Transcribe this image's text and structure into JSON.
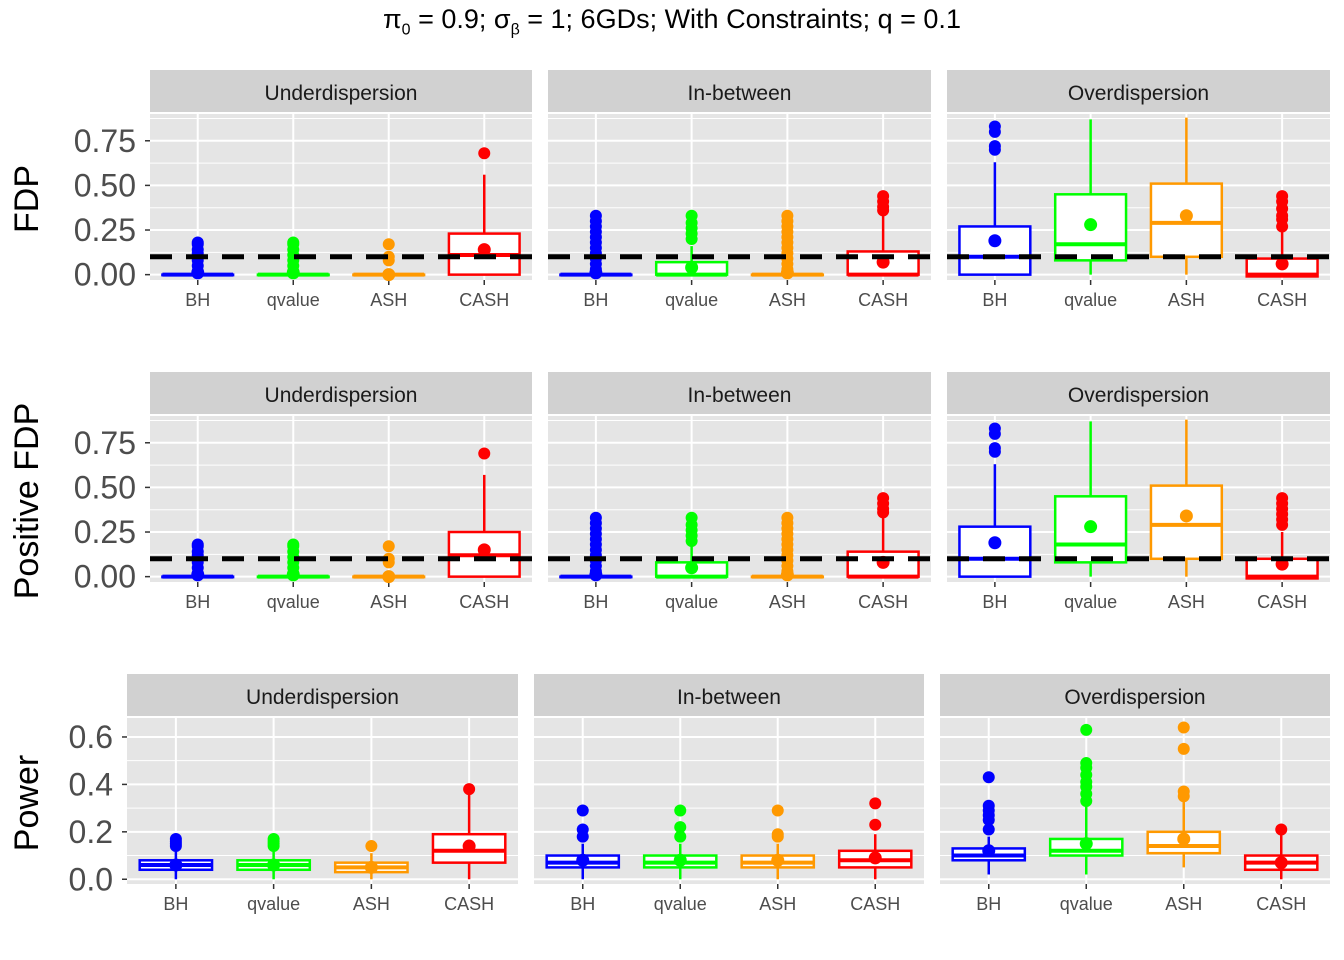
{
  "title": "π₀ = 0.9; σ_β = 1; 6GDs; With Constraints; q = 0.1",
  "title_parts": {
    "pi": "π",
    "pi_sub": "0",
    "pi_val": " = 0.9; ",
    "sigma": "σ",
    "sigma_sub": "β",
    "rest": " = 1; 6GDs; With Constraints; q = 0.1"
  },
  "colors": {
    "BH": "#0000ff",
    "qvalue": "#00ff00",
    "ASH": "#ff9900",
    "CASH": "#ff0000",
    "panel_bg": "#e5e5e5",
    "strip_bg": "#d1d1d1",
    "grid": "#ffffff",
    "threshold": "#000000"
  },
  "chart_data": [
    {
      "type": "box",
      "ylabel": "FDP",
      "ylim": [
        -0.03,
        0.9
      ],
      "yticks": [
        0.0,
        0.25,
        0.5,
        0.75
      ],
      "ytick_labels": [
        "0.00",
        "0.25",
        "0.50",
        "0.75"
      ],
      "threshold": 0.1,
      "categories": [
        "BH",
        "qvalue",
        "ASH",
        "CASH"
      ],
      "facets": [
        {
          "label": "Underdispersion",
          "boxes": [
            {
              "method": "BH",
              "q1": 0,
              "median": 0,
              "q3": 0,
              "whisker_low": 0,
              "whisker_high": 0,
              "mean": 0.01,
              "outliers": [
                0.02,
                0.05,
                0.08,
                0.1,
                0.12,
                0.14,
                0.17,
                0.18
              ]
            },
            {
              "method": "qvalue",
              "q1": 0,
              "median": 0,
              "q3": 0,
              "whisker_low": 0,
              "whisker_high": 0,
              "mean": 0.01,
              "outliers": [
                0.02,
                0.05,
                0.08,
                0.11,
                0.14,
                0.17,
                0.18
              ]
            },
            {
              "method": "ASH",
              "q1": 0,
              "median": 0,
              "q3": 0,
              "whisker_low": 0,
              "whisker_high": 0,
              "mean": 0.0,
              "outliers": [
                0.08,
                0.1,
                0.17
              ]
            },
            {
              "method": "CASH",
              "q1": 0,
              "median": 0.11,
              "q3": 0.23,
              "whisker_low": 0,
              "whisker_high": 0.56,
              "mean": 0.14,
              "outliers": [
                0.68
              ]
            }
          ]
        },
        {
          "label": "In-between",
          "boxes": [
            {
              "method": "BH",
              "q1": 0,
              "median": 0,
              "q3": 0,
              "whisker_low": 0,
              "whisker_high": 0,
              "mean": 0.01,
              "outliers": [
                0.03,
                0.06,
                0.09,
                0.12,
                0.15,
                0.18,
                0.21,
                0.24,
                0.27,
                0.3,
                0.33
              ]
            },
            {
              "method": "qvalue",
              "q1": 0,
              "median": 0,
              "q3": 0.07,
              "whisker_low": 0,
              "whisker_high": 0.16,
              "mean": 0.04,
              "outliers": [
                0.2,
                0.23,
                0.26,
                0.29,
                0.33
              ]
            },
            {
              "method": "ASH",
              "q1": 0,
              "median": 0,
              "q3": 0,
              "whisker_low": 0,
              "whisker_high": 0,
              "mean": 0.01,
              "outliers": [
                0.03,
                0.06,
                0.09,
                0.12,
                0.15,
                0.18,
                0.21,
                0.24,
                0.27,
                0.3,
                0.33
              ]
            },
            {
              "method": "CASH",
              "q1": 0,
              "median": 0,
              "q3": 0.13,
              "whisker_low": 0,
              "whisker_high": 0.33,
              "mean": 0.07,
              "outliers": [
                0.36,
                0.38,
                0.41,
                0.44
              ]
            }
          ]
        },
        {
          "label": "Overdispersion",
          "boxes": [
            {
              "method": "BH",
              "q1": 0,
              "median": 0.1,
              "q3": 0.27,
              "whisker_low": 0,
              "whisker_high": 0.63,
              "mean": 0.19,
              "outliers": [
                0.7,
                0.72,
                0.8,
                0.83
              ]
            },
            {
              "method": "qvalue",
              "q1": 0.08,
              "median": 0.17,
              "q3": 0.45,
              "whisker_low": 0,
              "whisker_high": 0.87,
              "mean": 0.28,
              "outliers": []
            },
            {
              "method": "ASH",
              "q1": 0.1,
              "median": 0.29,
              "q3": 0.51,
              "whisker_low": 0,
              "whisker_high": 0.88,
              "mean": 0.33,
              "outliers": []
            },
            {
              "method": "CASH",
              "q1": -0.01,
              "median": 0,
              "q3": 0.09,
              "whisker_low": 0,
              "whisker_high": 0.24,
              "mean": 0.06,
              "outliers": [
                0.27,
                0.31,
                0.33,
                0.37,
                0.41,
                0.44
              ]
            }
          ]
        }
      ]
    },
    {
      "type": "box",
      "ylabel": "Positive FDP",
      "ylim": [
        -0.03,
        0.9
      ],
      "yticks": [
        0.0,
        0.25,
        0.5,
        0.75
      ],
      "ytick_labels": [
        "0.00",
        "0.25",
        "0.50",
        "0.75"
      ],
      "threshold": 0.1,
      "categories": [
        "BH",
        "qvalue",
        "ASH",
        "CASH"
      ],
      "facets": [
        {
          "label": "Underdispersion",
          "boxes": [
            {
              "method": "BH",
              "q1": 0,
              "median": 0,
              "q3": 0,
              "whisker_low": 0,
              "whisker_high": 0,
              "mean": 0.01,
              "outliers": [
                0.02,
                0.05,
                0.08,
                0.1,
                0.12,
                0.14,
                0.17,
                0.18
              ]
            },
            {
              "method": "qvalue",
              "q1": 0,
              "median": 0,
              "q3": 0,
              "whisker_low": 0,
              "whisker_high": 0,
              "mean": 0.01,
              "outliers": [
                0.02,
                0.05,
                0.08,
                0.11,
                0.14,
                0.17,
                0.18
              ]
            },
            {
              "method": "ASH",
              "q1": 0,
              "median": 0,
              "q3": 0,
              "whisker_low": 0,
              "whisker_high": 0,
              "mean": 0.0,
              "outliers": [
                0.08,
                0.1,
                0.17
              ]
            },
            {
              "method": "CASH",
              "q1": 0,
              "median": 0.12,
              "q3": 0.25,
              "whisker_low": 0,
              "whisker_high": 0.57,
              "mean": 0.15,
              "outliers": [
                0.69
              ]
            }
          ]
        },
        {
          "label": "In-between",
          "boxes": [
            {
              "method": "BH",
              "q1": 0,
              "median": 0,
              "q3": 0,
              "whisker_low": 0,
              "whisker_high": 0,
              "mean": 0.01,
              "outliers": [
                0.03,
                0.06,
                0.09,
                0.12,
                0.15,
                0.18,
                0.21,
                0.24,
                0.27,
                0.3,
                0.33
              ]
            },
            {
              "method": "qvalue",
              "q1": 0,
              "median": 0,
              "q3": 0.08,
              "whisker_low": 0,
              "whisker_high": 0.17,
              "mean": 0.05,
              "outliers": [
                0.2,
                0.23,
                0.26,
                0.29,
                0.33
              ]
            },
            {
              "method": "ASH",
              "q1": 0,
              "median": 0,
              "q3": 0,
              "whisker_low": 0,
              "whisker_high": 0,
              "mean": 0.01,
              "outliers": [
                0.03,
                0.06,
                0.09,
                0.12,
                0.15,
                0.18,
                0.21,
                0.24,
                0.27,
                0.3,
                0.33
              ]
            },
            {
              "method": "CASH",
              "q1": 0,
              "median": 0,
              "q3": 0.14,
              "whisker_low": 0,
              "whisker_high": 0.34,
              "mean": 0.08,
              "outliers": [
                0.36,
                0.38,
                0.41,
                0.44
              ]
            }
          ]
        },
        {
          "label": "Overdispersion",
          "boxes": [
            {
              "method": "BH",
              "q1": 0,
              "median": 0.1,
              "q3": 0.28,
              "whisker_low": 0,
              "whisker_high": 0.63,
              "mean": 0.19,
              "outliers": [
                0.7,
                0.72,
                0.8,
                0.83
              ]
            },
            {
              "method": "qvalue",
              "q1": 0.08,
              "median": 0.18,
              "q3": 0.45,
              "whisker_low": 0,
              "whisker_high": 0.87,
              "mean": 0.28,
              "outliers": []
            },
            {
              "method": "ASH",
              "q1": 0.1,
              "median": 0.29,
              "q3": 0.51,
              "whisker_low": 0,
              "whisker_high": 0.88,
              "mean": 0.34,
              "outliers": []
            },
            {
              "method": "CASH",
              "q1": -0.01,
              "median": 0,
              "q3": 0.1,
              "whisker_low": 0,
              "whisker_high": 0.25,
              "mean": 0.07,
              "outliers": [
                0.29,
                0.32,
                0.35,
                0.38,
                0.41,
                0.44
              ]
            }
          ]
        }
      ]
    },
    {
      "type": "box",
      "ylabel": "Power",
      "ylim": [
        -0.02,
        0.68
      ],
      "yticks": [
        0.0,
        0.2,
        0.4,
        0.6
      ],
      "ytick_labels": [
        "0.0",
        "0.2",
        "0.4",
        "0.6"
      ],
      "threshold": null,
      "categories": [
        "BH",
        "qvalue",
        "ASH",
        "CASH"
      ],
      "facets": [
        {
          "label": "Underdispersion",
          "boxes": [
            {
              "method": "BH",
              "q1": 0.04,
              "median": 0.06,
              "q3": 0.08,
              "whisker_low": 0,
              "whisker_high": 0.12,
              "mean": 0.06,
              "outliers": [
                0.14,
                0.15,
                0.16,
                0.17
              ]
            },
            {
              "method": "qvalue",
              "q1": 0.04,
              "median": 0.06,
              "q3": 0.08,
              "whisker_low": 0,
              "whisker_high": 0.12,
              "mean": 0.06,
              "outliers": [
                0.14,
                0.15,
                0.16,
                0.17
              ]
            },
            {
              "method": "ASH",
              "q1": 0.03,
              "median": 0.05,
              "q3": 0.07,
              "whisker_low": 0,
              "whisker_high": 0.11,
              "mean": 0.05,
              "outliers": [
                0.14
              ]
            },
            {
              "method": "CASH",
              "q1": 0.07,
              "median": 0.12,
              "q3": 0.19,
              "whisker_low": 0,
              "whisker_high": 0.37,
              "mean": 0.14,
              "outliers": [
                0.38
              ]
            }
          ]
        },
        {
          "label": "In-between",
          "boxes": [
            {
              "method": "BH",
              "q1": 0.05,
              "median": 0.07,
              "q3": 0.1,
              "whisker_low": 0,
              "whisker_high": 0.15,
              "mean": 0.08,
              "outliers": [
                0.18,
                0.21,
                0.29
              ]
            },
            {
              "method": "qvalue",
              "q1": 0.05,
              "median": 0.07,
              "q3": 0.1,
              "whisker_low": 0,
              "whisker_high": 0.15,
              "mean": 0.08,
              "outliers": [
                0.18,
                0.22,
                0.29
              ]
            },
            {
              "method": "ASH",
              "q1": 0.05,
              "median": 0.07,
              "q3": 0.1,
              "whisker_low": 0,
              "whisker_high": 0.15,
              "mean": 0.08,
              "outliers": [
                0.18,
                0.19,
                0.29
              ]
            },
            {
              "method": "CASH",
              "q1": 0.05,
              "median": 0.08,
              "q3": 0.12,
              "whisker_low": 0,
              "whisker_high": 0.19,
              "mean": 0.09,
              "outliers": [
                0.23,
                0.32
              ]
            }
          ]
        },
        {
          "label": "Overdispersion",
          "boxes": [
            {
              "method": "BH",
              "q1": 0.08,
              "median": 0.1,
              "q3": 0.13,
              "whisker_low": 0.02,
              "whisker_high": 0.18,
              "mean": 0.12,
              "outliers": [
                0.21,
                0.25,
                0.27,
                0.29,
                0.31,
                0.43
              ]
            },
            {
              "method": "qvalue",
              "q1": 0.1,
              "median": 0.12,
              "q3": 0.17,
              "whisker_low": 0.02,
              "whisker_high": 0.31,
              "mean": 0.15,
              "outliers": [
                0.33,
                0.36,
                0.39,
                0.41,
                0.44,
                0.47,
                0.49,
                0.63
              ]
            },
            {
              "method": "ASH",
              "q1": 0.11,
              "median": 0.14,
              "q3": 0.2,
              "whisker_low": 0.05,
              "whisker_high": 0.34,
              "mean": 0.17,
              "outliers": [
                0.35,
                0.37,
                0.55,
                0.64
              ]
            },
            {
              "method": "CASH",
              "q1": 0.04,
              "median": 0.07,
              "q3": 0.1,
              "whisker_low": 0,
              "whisker_high": 0.2,
              "mean": 0.07,
              "outliers": [
                0.21
              ]
            }
          ]
        }
      ]
    }
  ]
}
